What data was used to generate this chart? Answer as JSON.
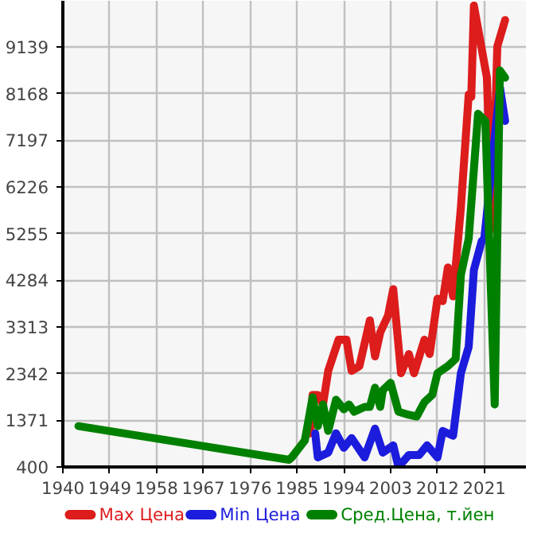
{
  "chart_data": {
    "type": "line",
    "xlim": [
      1940,
      2029
    ],
    "ylim": [
      400,
      10100
    ],
    "xticks": [
      1940,
      1949,
      1958,
      1967,
      1976,
      1985,
      1994,
      2003,
      2012,
      2021
    ],
    "yticks": [
      400,
      1371,
      2342,
      3313,
      4284,
      5255,
      6226,
      7197,
      8168,
      9139
    ],
    "grid": true,
    "legend": "bottom",
    "line_style": "solid",
    "marker": "none",
    "series": [
      {
        "name": "Max Цена",
        "color": "#dd1c1c",
        "x": [
          1987.5,
          1988,
          1989,
          1990,
          1991,
          1993,
          1994.5,
          1995.5,
          1997,
          1999,
          2000,
          2001,
          2002.5,
          2003.5,
          2005,
          2006.5,
          2007.5,
          2009.5,
          2010.5,
          2012,
          2013,
          2014,
          2015,
          2016.5,
          2018,
          2018.5,
          2019,
          2021.5,
          2022.5,
          2023.5,
          2025
        ],
        "values": [
          1100,
          1900,
          1900,
          1700,
          2400,
          3050,
          3050,
          2400,
          2500,
          3450,
          2700,
          3200,
          3550,
          4100,
          2350,
          2750,
          2350,
          3050,
          2750,
          3900,
          3850,
          4550,
          3950,
          5800,
          8150,
          8100,
          10000,
          8500,
          5350,
          9150,
          9700
        ]
      },
      {
        "name": "Min Цена",
        "color": "#1c1cdd",
        "x": [
          1988.5,
          1989,
          1991,
          1992.5,
          1994,
          1995.5,
          1998,
          2000,
          2001.5,
          2003.5,
          2004.5,
          2006.5,
          2008.5,
          2010,
          2012,
          2013,
          2015,
          2016.5,
          2018,
          2019,
          2020.5,
          2021,
          2024,
          2025
        ],
        "values": [
          1100,
          600,
          700,
          1100,
          800,
          1000,
          600,
          1200,
          700,
          850,
          400,
          650,
          650,
          850,
          600,
          1150,
          1050,
          2350,
          2900,
          4500,
          5100,
          5150,
          8300,
          7600
        ]
      },
      {
        "name": "Сред.Цена, т.йен",
        "color": "#008000",
        "x": [
          1943,
          1983.5,
          1984,
          1986.5,
          1988,
          1989,
          1990,
          1991,
          1992.5,
          1994,
          1995,
          1996,
          1998,
          1999,
          2000,
          2001,
          2001.5,
          2003,
          2004.5,
          2006,
          2008,
          2009.5,
          2011,
          2012,
          2014,
          2015.5,
          2016.5,
          2018,
          2019.8,
          2021.2,
          2023,
          2024,
          2025
        ],
        "values": [
          1250,
          550,
          600,
          950,
          1850,
          1250,
          1700,
          1150,
          1800,
          1600,
          1700,
          1550,
          1650,
          1650,
          2050,
          1650,
          2000,
          2150,
          1550,
          1500,
          1450,
          1750,
          1900,
          2350,
          2500,
          2650,
          4400,
          5150,
          7750,
          7600,
          1700,
          8650,
          8500
        ]
      }
    ]
  }
}
